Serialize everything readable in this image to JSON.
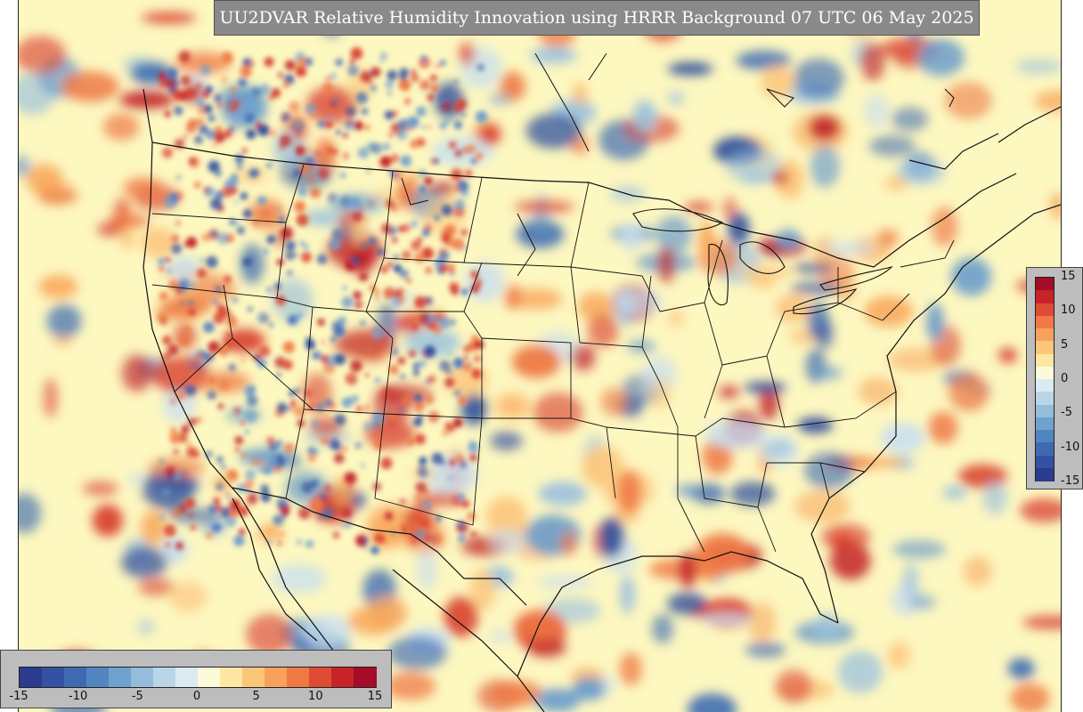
{
  "title": "UU2DVAR Relative Humidity Innovation using HRRR Background 07 UTC 06 May 2025",
  "colorbar": {
    "min": -15,
    "max": 15,
    "vertical_ticks": [
      "15",
      "10",
      "5",
      "0",
      "-5",
      "-10",
      "-15"
    ],
    "horizontal_ticks": [
      "-15",
      "-10",
      "-5",
      "0",
      "5",
      "10",
      "15"
    ],
    "colors": [
      "#2b3b8f",
      "#3452a3",
      "#3f6ab2",
      "#5286c0",
      "#6fa2ce",
      "#93bddb",
      "#b8d6e8",
      "#dcebf1",
      "#fbfbd9",
      "#fde7a3",
      "#fcc67a",
      "#f9a15c",
      "#f07845",
      "#df4c35",
      "#c82327",
      "#a40c27"
    ]
  },
  "map": {
    "background_color": "#fdf7c0",
    "positive_color": "#c01f26",
    "negative_color": "#2f4f9c"
  }
}
